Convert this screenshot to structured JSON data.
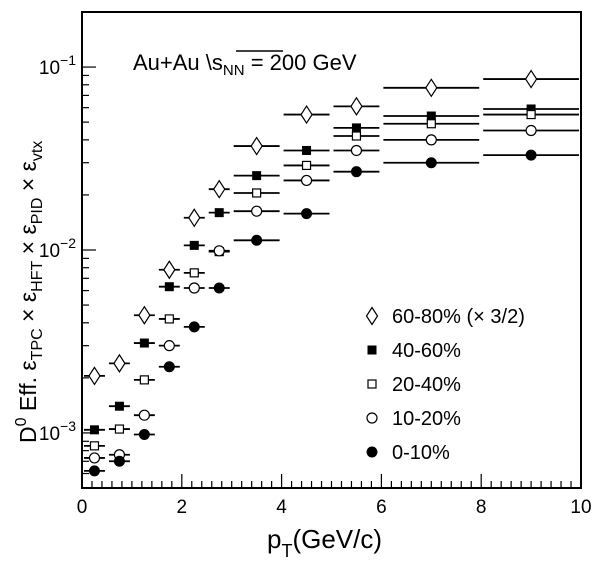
{
  "chart_data": {
    "type": "scatter",
    "title": "",
    "annotation": {
      "prefix": "Au+Au ",
      "sqrt_sym": "\\",
      "var": "s",
      "sub": "NN",
      "suffix": " = 200 GeV"
    },
    "xlabel": {
      "main": "p",
      "sub": "T",
      "rest": "(GeV/c)"
    },
    "ylabel": {
      "parts": [
        {
          "t": "D",
          "k": "n"
        },
        {
          "t": "0",
          "k": "sup"
        },
        {
          "t": " Eff. ε",
          "k": "n"
        },
        {
          "t": "TPC",
          "k": "sub"
        },
        {
          "t": " × ε",
          "k": "n"
        },
        {
          "t": "HFT",
          "k": "sub"
        },
        {
          "t": " × ε",
          "k": "n"
        },
        {
          "t": "PID",
          "k": "sub"
        },
        {
          "t": " × ε",
          "k": "n"
        },
        {
          "t": "vtx",
          "k": "sub"
        }
      ]
    },
    "xlim": [
      0,
      10
    ],
    "ylim": [
      0.0005,
      0.2
    ],
    "yscale": "log",
    "x_ticks": [
      "0",
      "2",
      "4",
      "6",
      "8",
      "10"
    ],
    "y_ticks": [
      {
        "base": "10",
        "exp": "−3",
        "value": 0.001
      },
      {
        "base": "10",
        "exp": "−2",
        "value": 0.01
      },
      {
        "base": "10",
        "exp": "−1",
        "value": 0.1
      }
    ],
    "grid": false,
    "legend_position": "bottom-right",
    "x_bins": [
      [
        0,
        0.5
      ],
      [
        0.5,
        1
      ],
      [
        1,
        1.5
      ],
      [
        1.5,
        2
      ],
      [
        2,
        2.5
      ],
      [
        2.5,
        3
      ],
      [
        3,
        4
      ],
      [
        4,
        5
      ],
      [
        5,
        6
      ],
      [
        6,
        8
      ],
      [
        8,
        10
      ]
    ],
    "series": [
      {
        "name": "60-80% (× 3/2)",
        "marker": "diamond-open",
        "values": [
          0.00205,
          0.0024,
          0.0044,
          0.0078,
          0.015,
          0.0215,
          0.037,
          0.055,
          0.061,
          0.077,
          0.086
        ]
      },
      {
        "name": "40-60%",
        "marker": "square-filled",
        "values": [
          0.00104,
          0.0014,
          0.0031,
          0.0063,
          0.0106,
          0.016,
          0.0255,
          0.035,
          0.0465,
          0.054,
          0.059
        ]
      },
      {
        "name": "20-40%",
        "marker": "square-open",
        "values": [
          0.00085,
          0.00105,
          0.00195,
          0.0042,
          0.0075,
          0.0098,
          0.0205,
          0.029,
          0.042,
          0.049,
          0.055
        ]
      },
      {
        "name": "10-20%",
        "marker": "circle-open",
        "values": [
          0.00073,
          0.00076,
          0.00125,
          0.003,
          0.0062,
          0.0099,
          0.0163,
          0.024,
          0.035,
          0.04,
          0.045
        ]
      },
      {
        "name": "0-10%",
        "marker": "circle-filled",
        "values": [
          0.00062,
          0.0007,
          0.00098,
          0.0023,
          0.0038,
          0.0062,
          0.0113,
          0.0158,
          0.0268,
          0.03,
          0.033
        ]
      }
    ]
  }
}
